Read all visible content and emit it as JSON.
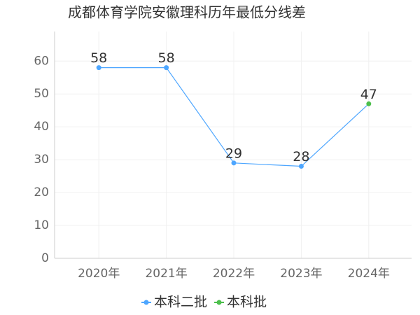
{
  "chart_data": {
    "type": "line",
    "title": "成都体育学院安徽理科历年最低分线差",
    "categories": [
      "2020年",
      "2021年",
      "2022年",
      "2023年",
      "2024年"
    ],
    "series": [
      {
        "name": "本科二批",
        "color": "#4da6ff",
        "values": [
          58,
          58,
          29,
          28,
          null
        ]
      },
      {
        "name": "本科批",
        "color": "#4cbf4c",
        "values": [
          null,
          null,
          null,
          null,
          47
        ]
      }
    ],
    "ylim": [
      0,
      69
    ],
    "yticks": [
      0,
      10,
      20,
      30,
      40,
      50,
      60
    ],
    "grid": true
  }
}
